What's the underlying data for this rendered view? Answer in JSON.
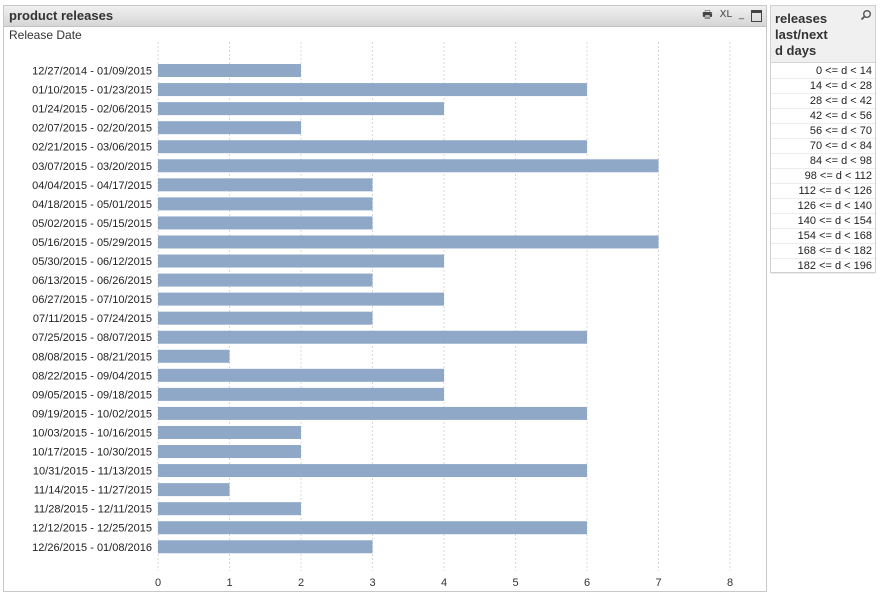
{
  "chart_box": {
    "title": "product releases",
    "dimension_label": "Release Date",
    "icons": [
      "print-icon",
      "xl-icon",
      "restore-icon"
    ],
    "xl_text": "XL"
  },
  "listbox": {
    "title": "releases\nlast/next\nd days",
    "search_icon": "search-icon",
    "items": [
      "0 <= d < 14",
      "14 <= d < 28",
      "28 <= d < 42",
      "42 <= d < 56",
      "56 <= d < 70",
      "70 <= d < 84",
      "84 <= d < 98",
      "98 <= d < 112",
      "112 <= d < 126",
      "126 <= d < 140",
      "140 <= d < 154",
      "154 <= d < 168",
      "168 <= d < 182",
      "182 <= d < 196"
    ]
  },
  "colors": {
    "bar": "#8fa8c8",
    "grid": "#d8d8d8"
  },
  "chart_data": {
    "type": "bar",
    "orientation": "horizontal",
    "title": "product releases",
    "xlabel": "",
    "ylabel": "Release Date",
    "xlim": [
      0,
      8
    ],
    "xticks": [
      0,
      1,
      2,
      3,
      4,
      5,
      6,
      7,
      8
    ],
    "grid": "vertical dashed",
    "categories": [
      "12/27/2014 - 01/09/2015",
      "01/10/2015 - 01/23/2015",
      "01/24/2015 - 02/06/2015",
      "02/07/2015 - 02/20/2015",
      "02/21/2015 - 03/06/2015",
      "03/07/2015 - 03/20/2015",
      "04/04/2015 - 04/17/2015",
      "04/18/2015 - 05/01/2015",
      "05/02/2015 - 05/15/2015",
      "05/16/2015 - 05/29/2015",
      "05/30/2015 - 06/12/2015",
      "06/13/2015 - 06/26/2015",
      "06/27/2015 - 07/10/2015",
      "07/11/2015 - 07/24/2015",
      "07/25/2015 - 08/07/2015",
      "08/08/2015 - 08/21/2015",
      "08/22/2015 - 09/04/2015",
      "09/05/2015 - 09/18/2015",
      "09/19/2015 - 10/02/2015",
      "10/03/2015 - 10/16/2015",
      "10/17/2015 - 10/30/2015",
      "10/31/2015 - 11/13/2015",
      "11/14/2015 - 11/27/2015",
      "11/28/2015 - 12/11/2015",
      "12/12/2015 - 12/25/2015",
      "12/26/2015 - 01/08/2016"
    ],
    "values": [
      2,
      6,
      4,
      2,
      6,
      7,
      3,
      3,
      3,
      7,
      4,
      3,
      4,
      3,
      6,
      1,
      4,
      4,
      6,
      2,
      2,
      6,
      1,
      2,
      6,
      3
    ]
  }
}
